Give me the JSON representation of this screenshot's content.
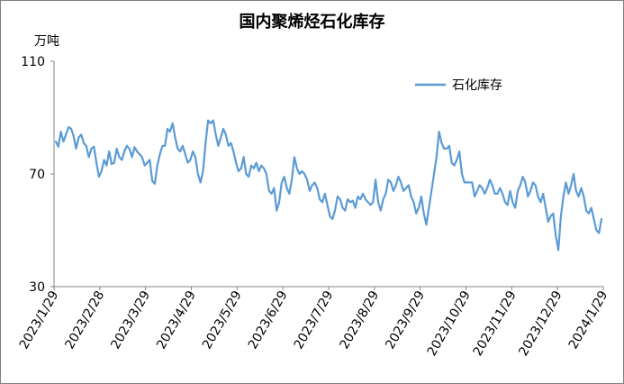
{
  "chart_data": {
    "type": "line",
    "title": "国内聚烯烃石化库存",
    "unit_label": "万吨",
    "ylim": [
      30,
      110
    ],
    "yticks": [
      30,
      70,
      110
    ],
    "x_tick_labels": [
      "2023/1/29",
      "2023/2/28",
      "2023/3/29",
      "2023/4/29",
      "2023/5/29",
      "2023/6/29",
      "2023/7/29",
      "2023/8/29",
      "2023/9/29",
      "2023/10/29",
      "2023/11/29",
      "2023/12/29",
      "2024/1/29"
    ],
    "grid": false,
    "legend_position": "top-right",
    "series_color": "#5b9bd5",
    "series": [
      {
        "name": "石化库存",
        "values": [
          81.5,
          79.7,
          85.0,
          81.5,
          84.0,
          86.6,
          86.1,
          83.5,
          79.0,
          83.0,
          84.0,
          81.0,
          80.0,
          76.0,
          79.0,
          79.7,
          74.0,
          69.0,
          71.0,
          75.0,
          73.0,
          78.0,
          73.5,
          74.0,
          79.0,
          76.0,
          75.0,
          78.0,
          80.0,
          79.0,
          76.0,
          79.5,
          78.0,
          77.0,
          76.0,
          73.0,
          74.0,
          75.0,
          67.5,
          66.5,
          73.0,
          77.0,
          80.0,
          80.0,
          86.0,
          85.0,
          88.0,
          83.0,
          79.0,
          78.0,
          80.0,
          77.0,
          74.0,
          75.0,
          78.0,
          76.0,
          70.0,
          67.0,
          71.0,
          81.0,
          89.0,
          88.0,
          89.0,
          84.0,
          80.0,
          83.0,
          86.0,
          84.0,
          80.0,
          81.0,
          78.0,
          74.0,
          71.0,
          72.0,
          76.0,
          70.0,
          69.0,
          73.0,
          72.0,
          74.0,
          71.0,
          73.0,
          72.0,
          70.0,
          64.0,
          63.0,
          65.0,
          57.0,
          60.0,
          67.0,
          69.0,
          65.0,
          63.0,
          68.0,
          76.0,
          72.0,
          70.0,
          71.0,
          70.0,
          68.0,
          64.0,
          66.0,
          67.0,
          65.0,
          61.0,
          60.0,
          63.0,
          59.0,
          55.0,
          54.0,
          57.0,
          62.0,
          61.0,
          58.0,
          57.0,
          61.0,
          60.0,
          60.5,
          58.0,
          62.0,
          61.0,
          63.0,
          61.0,
          60.0,
          59.0,
          60.0,
          68.0,
          60.0,
          57.0,
          61.0,
          63.0,
          68.0,
          67.0,
          64.0,
          66.0,
          69.0,
          67.0,
          64.0,
          65.0,
          66.0,
          62.0,
          60.0,
          56.0,
          58.0,
          62.0,
          56.0,
          52.0,
          58.0,
          64.0,
          70.0,
          76.0,
          85.0,
          81.0,
          79.0,
          79.0,
          80.0,
          74.0,
          73.0,
          75.0,
          78.0,
          70.0,
          67.0,
          67.0,
          67.0,
          67.0,
          62.0,
          64.0,
          66.0,
          65.0,
          63.0,
          65.0,
          68.0,
          66.0,
          63.0,
          63.0,
          65.0,
          63.0,
          60.0,
          59.0,
          64.0,
          60.0,
          58.0,
          64.0,
          66.0,
          69.0,
          67.0,
          62.0,
          64.0,
          67.0,
          66.0,
          62.0,
          60.0,
          63.0,
          58.0,
          53.0,
          55.0,
          56.0,
          48.0,
          43.0,
          55.0,
          62.0,
          67.0,
          63.0,
          66.0,
          70.0,
          64.0,
          62.0,
          65.0,
          62.0,
          57.0,
          56.0,
          58.0,
          54.0,
          50.0,
          49.0,
          54.0
        ]
      }
    ]
  }
}
